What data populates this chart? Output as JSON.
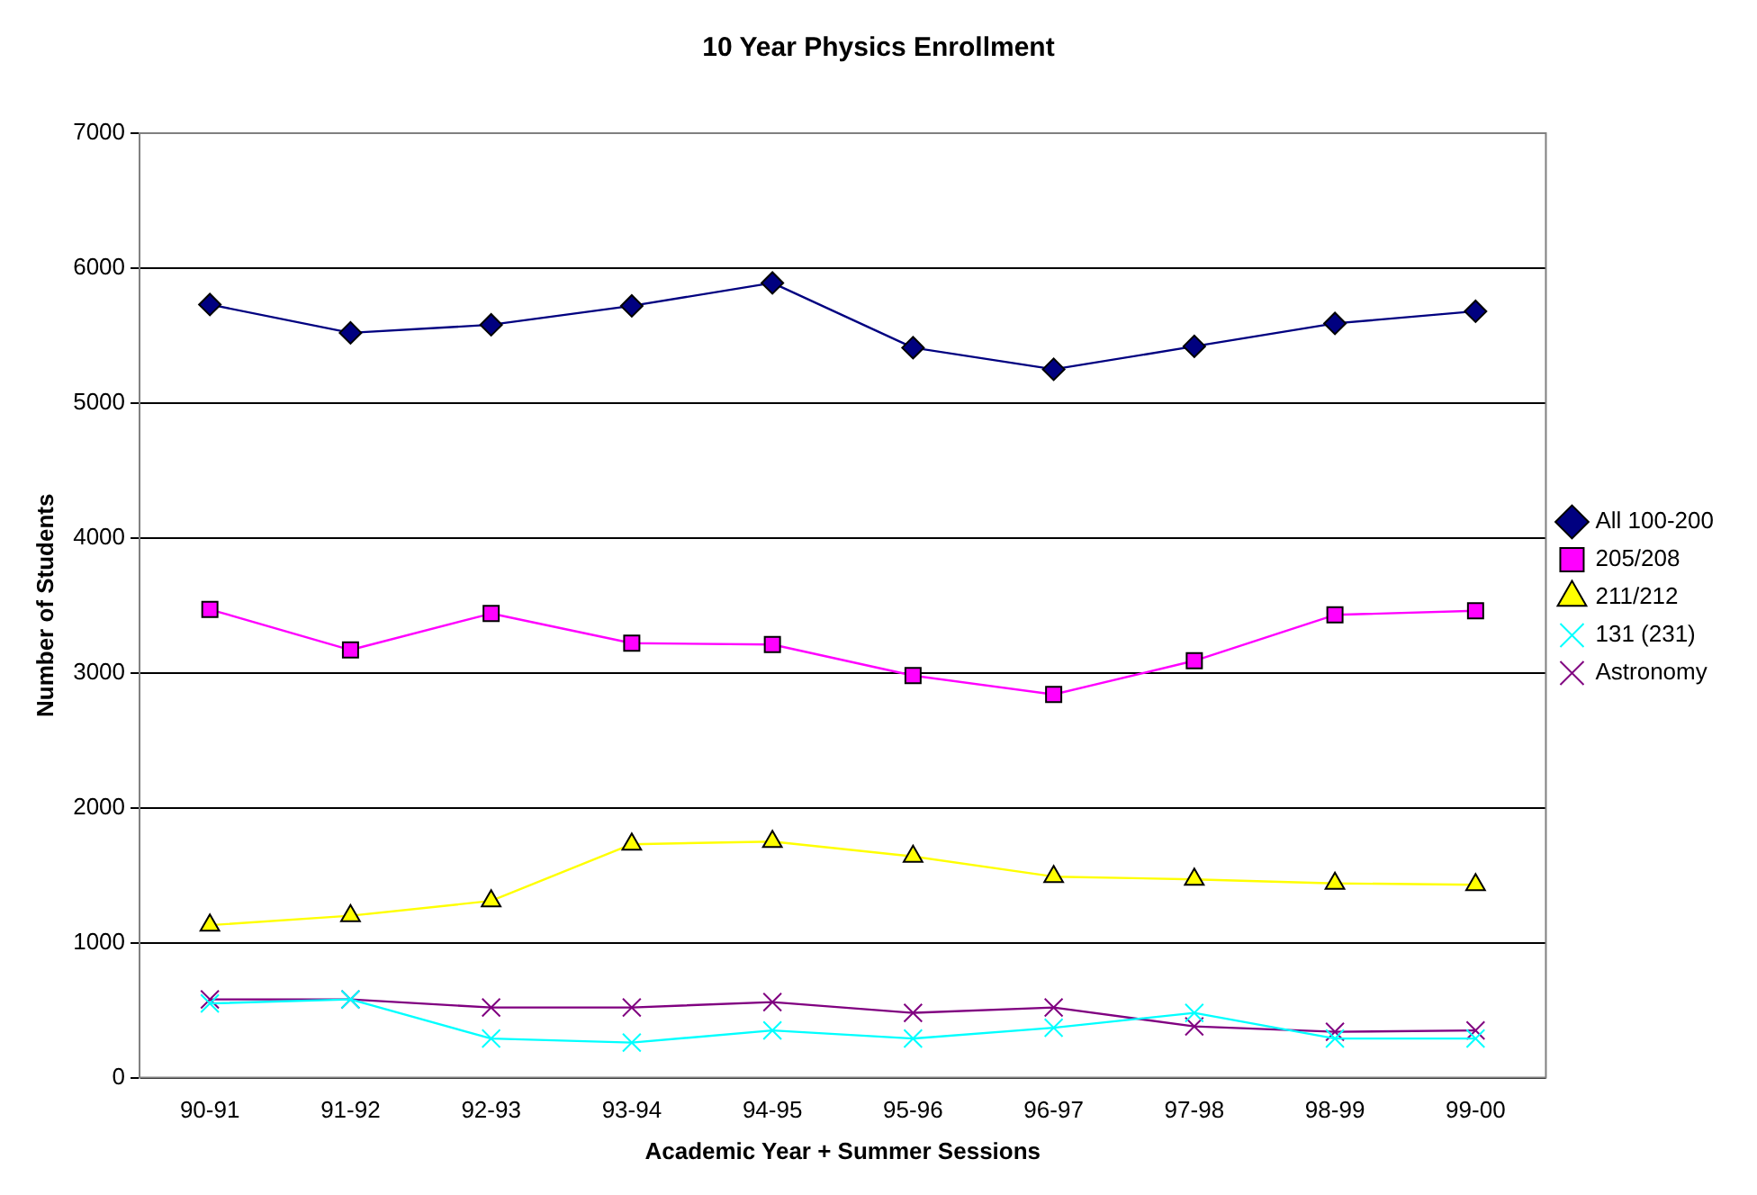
{
  "chart_data": {
    "type": "line",
    "title": "10 Year Physics Enrollment",
    "xlabel": "Academic Year + Summer Sessions",
    "ylabel": "Number of Students",
    "categories": [
      "90-91",
      "91-92",
      "92-93",
      "93-94",
      "94-95",
      "95-96",
      "96-97",
      "97-98",
      "98-99",
      "99-00"
    ],
    "ylim": [
      0,
      7000
    ],
    "yticks": [
      0,
      1000,
      2000,
      3000,
      4000,
      5000,
      6000,
      7000
    ],
    "grid": "y",
    "legend": "right",
    "series": [
      {
        "name": "All 100-200",
        "color": "#000080",
        "marker": "diamond",
        "values": [
          5730,
          5520,
          5580,
          5720,
          5890,
          5410,
          5250,
          5420,
          5590,
          5680
        ]
      },
      {
        "name": "205/208",
        "color": "#ff00ff",
        "marker": "square",
        "values": [
          3470,
          3170,
          3440,
          3220,
          3210,
          2980,
          2840,
          3090,
          3430,
          3460
        ]
      },
      {
        "name": "211/212",
        "color": "#ffff00",
        "marker": "triangle",
        "values": [
          1130,
          1200,
          1310,
          1730,
          1750,
          1640,
          1490,
          1470,
          1440,
          1430
        ]
      },
      {
        "name": "131 (231)",
        "color": "#00ffff",
        "marker": "cross",
        "values": [
          550,
          580,
          290,
          260,
          350,
          290,
          370,
          480,
          290,
          290
        ]
      },
      {
        "name": "Astronomy",
        "color": "#800080",
        "marker": "cross",
        "values": [
          580,
          580,
          520,
          520,
          560,
          480,
          520,
          380,
          340,
          350
        ]
      }
    ]
  }
}
